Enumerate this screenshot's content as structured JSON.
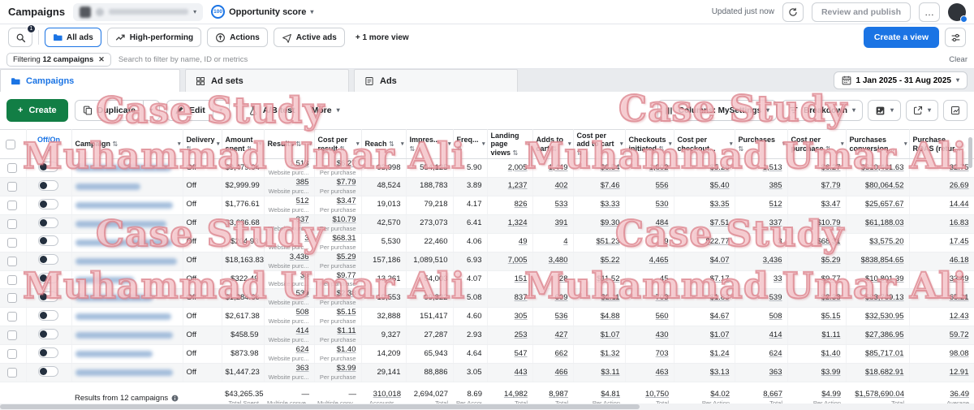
{
  "watermarks": [
    "Case Study",
    "Muhammad Umar Ali"
  ],
  "colors": {
    "accent_blue": "#1b74e4",
    "create_green": "#127e45",
    "watermark_pink": "#e9a3a9",
    "toggle_knob": "#24303f"
  },
  "top_bar": {
    "title": "Campaigns",
    "account_selector": {
      "redacted": true,
      "icon": "account-avatar"
    },
    "opportunity_score": {
      "value": "100",
      "label": "Opportunity score"
    },
    "updated_text": "Updated just now",
    "refresh_icon": "refresh-icon",
    "review_button": "Review and publish",
    "more_button": "…"
  },
  "view_bar": {
    "filter_badge": "1",
    "search_icon": "search-icon",
    "views": [
      {
        "label": "All ads",
        "icon": "folder",
        "active": true
      },
      {
        "label": "High-performing",
        "icon": "trend",
        "active": false
      },
      {
        "label": "Actions",
        "icon": "target",
        "active": false
      },
      {
        "label": "Active ads",
        "icon": "send",
        "active": false
      }
    ],
    "more_view": "+ 1 more view",
    "create_view_button": "Create a view",
    "sliders_icon": "sliders-icon"
  },
  "filter_bar": {
    "chip_prefix": "Filtering",
    "chip_bold": "12 campaigns",
    "search_placeholder": "Search to filter by name, ID or metrics",
    "clear": "Clear"
  },
  "tabs": {
    "items": [
      {
        "label": "Campaigns",
        "icon": "folder",
        "active": true
      },
      {
        "label": "Ad sets",
        "icon": "grid",
        "active": false
      },
      {
        "label": "Ads",
        "icon": "page",
        "active": false
      }
    ],
    "date_range": "1 Jan 2025 - 31 Aug 2025"
  },
  "toolbar": {
    "create": "Create",
    "duplicate": "Duplicate",
    "edit": "Edit",
    "ab_test": "A/B test",
    "more": "More",
    "columns": "Columns: MySettings",
    "breakdown": "Breakdown"
  },
  "table": {
    "headers": [
      {
        "label": "Off/On",
        "sorted_desc": true
      },
      {
        "label": "Campaign",
        "sortable": true
      },
      {
        "label": "Delivery",
        "sortable": true
      },
      {
        "label": "Amount spent",
        "sortable": true
      },
      {
        "label": "Results",
        "sortable": true
      },
      {
        "label": "Cost per result",
        "sortable": true
      },
      {
        "label": "Reach",
        "sortable": true
      },
      {
        "label": "Impres...",
        "sortable": true
      },
      {
        "label": "Freq...",
        "sortable": true
      },
      {
        "label": "Landing page views",
        "sortable": true
      },
      {
        "label": "Adds to cart",
        "sortable": true
      },
      {
        "label": "Cost per add to cart",
        "sortable": true
      },
      {
        "label": "Checkouts initiated",
        "sortable": true
      },
      {
        "label": "Cost per checkout...",
        "sortable": false
      },
      {
        "label": "Purchases",
        "sortable": true
      },
      {
        "label": "Cost per purchase",
        "sortable": true
      },
      {
        "label": "Purchases conversion...",
        "sortable": false
      },
      {
        "label": "Purchase ROAS (retur...",
        "sortable": false
      }
    ],
    "results_sub": "Website purc...",
    "cost_sub": "Per purchase",
    "rows": [
      {
        "toggle": "off",
        "name_redacted": true,
        "delivery": "Off",
        "amount_spent": "$9,479.04",
        "results": "1,513",
        "cost_per_result": "$6.27",
        "reach": "93,998",
        "impressions": "554,125",
        "frequency": "5.90",
        "landing_page_views": "2,005",
        "adds_to_cart": "1,449",
        "cost_per_add_to_cart": "$6.54",
        "checkouts_initiated": "1,802",
        "cost_per_checkout": "$5.26",
        "purchases": "1,513",
        "cost_per_purchase": "$6.27",
        "purchases_conversion_value": "$310,461.63",
        "purchase_roas": "32.75"
      },
      {
        "toggle": "off",
        "name_redacted": true,
        "delivery": "Off",
        "amount_spent": "$2,999.99",
        "results": "385",
        "cost_per_result": "$7.79",
        "reach": "48,524",
        "impressions": "188,783",
        "frequency": "3.89",
        "landing_page_views": "1,237",
        "adds_to_cart": "402",
        "cost_per_add_to_cart": "$7.46",
        "checkouts_initiated": "556",
        "cost_per_checkout": "$5.40",
        "purchases": "385",
        "cost_per_purchase": "$7.79",
        "purchases_conversion_value": "$80,064.52",
        "purchase_roas": "26.69"
      },
      {
        "toggle": "off",
        "name_redacted": true,
        "delivery": "Off",
        "amount_spent": "$1,776.61",
        "results": "512",
        "cost_per_result": "$3.47",
        "reach": "19,013",
        "impressions": "79,218",
        "frequency": "4.17",
        "landing_page_views": "826",
        "adds_to_cart": "533",
        "cost_per_add_to_cart": "$3.33",
        "checkouts_initiated": "530",
        "cost_per_checkout": "$3.35",
        "purchases": "512",
        "cost_per_purchase": "$3.47",
        "purchases_conversion_value": "$25,657.67",
        "purchase_roas": "14.44"
      },
      {
        "toggle": "off",
        "name_redacted": true,
        "delivery": "Off",
        "amount_spent": "$3,636.68",
        "results": "337",
        "cost_per_result": "$10.79",
        "reach": "42,570",
        "impressions": "273,073",
        "frequency": "6.41",
        "landing_page_views": "1,324",
        "adds_to_cart": "391",
        "cost_per_add_to_cart": "$9.30",
        "checkouts_initiated": "484",
        "cost_per_checkout": "$7.51",
        "purchases": "337",
        "cost_per_purchase": "$10.79",
        "purchases_conversion_value": "$61,188.03",
        "purchase_roas": "16.83"
      },
      {
        "toggle": "off",
        "name_redacted": true,
        "delivery": "Off",
        "amount_spent": "$204.93",
        "results": "3",
        "cost_per_result": "$68.31",
        "reach": "5,530",
        "impressions": "22,460",
        "frequency": "4.06",
        "landing_page_views": "49",
        "adds_to_cart": "4",
        "cost_per_add_to_cart": "$51.23",
        "checkouts_initiated": "9",
        "cost_per_checkout": "$22.77",
        "purchases": "3",
        "cost_per_purchase": "$68.31",
        "purchases_conversion_value": "$3,575.20",
        "purchase_roas": "17.45"
      },
      {
        "toggle": "off",
        "name_redacted": true,
        "delivery": "Off",
        "amount_spent": "$18,163.83",
        "results": "3,436",
        "cost_per_result": "$5.29",
        "reach": "157,186",
        "impressions": "1,089,510",
        "frequency": "6.93",
        "landing_page_views": "7,005",
        "adds_to_cart": "3,480",
        "cost_per_add_to_cart": "$5.22",
        "checkouts_initiated": "4,465",
        "cost_per_checkout": "$4.07",
        "purchases": "3,436",
        "cost_per_purchase": "$5.29",
        "purchases_conversion_value": "$838,854.65",
        "purchase_roas": "46.18"
      },
      {
        "toggle": "off",
        "name_redacted": true,
        "delivery": "Off",
        "amount_spent": "$322.49",
        "results": "33",
        "cost_per_result": "$9.77",
        "reach": "13,261",
        "impressions": "54,003",
        "frequency": "4.07",
        "landing_page_views": "151",
        "adds_to_cart": "28",
        "cost_per_add_to_cart": "$11.52",
        "checkouts_initiated": "45",
        "cost_per_checkout": "$7.17",
        "purchases": "33",
        "cost_per_purchase": "$9.77",
        "purchases_conversion_value": "$10,801.39",
        "purchase_roas": "33.49"
      },
      {
        "toggle": "off",
        "name_redacted": true,
        "delivery": "Off",
        "amount_spent": "$1,284.60",
        "results": "539",
        "cost_per_result": "$2.38",
        "reach": "19,553",
        "impressions": "99,322",
        "frequency": "5.08",
        "landing_page_views": "837",
        "adds_to_cart": "609",
        "cost_per_add_to_cart": "$2.11",
        "checkouts_initiated": "703",
        "cost_per_checkout": "$1.83",
        "purchases": "539",
        "cost_per_purchase": "$2.38",
        "purchases_conversion_value": "$83,769.13",
        "purchase_roas": "65.21"
      },
      {
        "toggle": "off",
        "name_redacted": true,
        "delivery": "Off",
        "amount_spent": "$2,617.38",
        "results": "508",
        "cost_per_result": "$5.15",
        "reach": "32,888",
        "impressions": "151,417",
        "frequency": "4.60",
        "landing_page_views": "305",
        "adds_to_cart": "536",
        "cost_per_add_to_cart": "$4.88",
        "checkouts_initiated": "560",
        "cost_per_checkout": "$4.67",
        "purchases": "508",
        "cost_per_purchase": "$5.15",
        "purchases_conversion_value": "$32,530.95",
        "purchase_roas": "12.43"
      },
      {
        "toggle": "off",
        "name_redacted": true,
        "delivery": "Off",
        "amount_spent": "$458.59",
        "results": "414",
        "cost_per_result": "$1.11",
        "reach": "9,327",
        "impressions": "27,287",
        "frequency": "2.93",
        "landing_page_views": "253",
        "adds_to_cart": "427",
        "cost_per_add_to_cart": "$1.07",
        "checkouts_initiated": "430",
        "cost_per_checkout": "$1.07",
        "purchases": "414",
        "cost_per_purchase": "$1.11",
        "purchases_conversion_value": "$27,386.95",
        "purchase_roas": "59.72"
      },
      {
        "toggle": "off",
        "name_redacted": true,
        "delivery": "Off",
        "amount_spent": "$873.98",
        "results": "624",
        "cost_per_result": "$1.40",
        "reach": "14,209",
        "impressions": "65,943",
        "frequency": "4.64",
        "landing_page_views": "547",
        "adds_to_cart": "662",
        "cost_per_add_to_cart": "$1.32",
        "checkouts_initiated": "703",
        "cost_per_checkout": "$1.24",
        "purchases": "624",
        "cost_per_purchase": "$1.40",
        "purchases_conversion_value": "$85,717.01",
        "purchase_roas": "98.08"
      },
      {
        "toggle": "off",
        "name_redacted": true,
        "delivery": "Off",
        "amount_spent": "$1,447.23",
        "results": "363",
        "cost_per_result": "$3.99",
        "reach": "29,141",
        "impressions": "88,886",
        "frequency": "3.05",
        "landing_page_views": "443",
        "adds_to_cart": "466",
        "cost_per_add_to_cart": "$3.11",
        "checkouts_initiated": "463",
        "cost_per_checkout": "$3.13",
        "purchases": "363",
        "cost_per_purchase": "$3.99",
        "purchases_conversion_value": "$18,682.91",
        "purchase_roas": "12.91"
      }
    ],
    "footer": {
      "label": "Results from 12 campaigns",
      "amount_spent": {
        "v": "$43,265.35",
        "s": "Total Spent"
      },
      "results": {
        "v": "—",
        "s": "Multiple conve..."
      },
      "cost_per_result": {
        "v": "—",
        "s": "Multiple conv..."
      },
      "reach": {
        "v": "310,018",
        "s": "Accounts ...",
        "u": true
      },
      "impressions": {
        "v": "2,694,027",
        "s": "Total"
      },
      "frequency": {
        "v": "8.69",
        "s": "Per Account..."
      },
      "landing_page_views": {
        "v": "14,982",
        "s": "Total",
        "u": true
      },
      "adds_to_cart": {
        "v": "8,987",
        "s": "Total",
        "u": true
      },
      "cost_per_add_to_cart": {
        "v": "$4.81",
        "s": "Per Action",
        "u": true
      },
      "checkouts_initiated": {
        "v": "10,750",
        "s": "Total",
        "u": true
      },
      "cost_per_checkout": {
        "v": "$4.02",
        "s": "Per Action",
        "u": true
      },
      "purchases": {
        "v": "8,667",
        "s": "Total",
        "u": true
      },
      "cost_per_purchase": {
        "v": "$4.99",
        "s": "Per Action",
        "u": true
      },
      "purchases_conversion_value": {
        "v": "$1,578,690.04",
        "s": "Total",
        "u": true
      },
      "purchase_roas": {
        "v": "36.49",
        "s": "Average",
        "u": true
      }
    }
  }
}
